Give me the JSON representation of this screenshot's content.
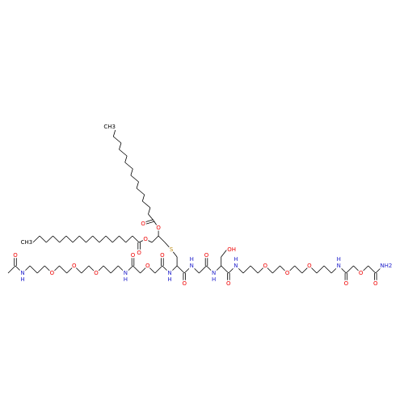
{
  "labels": [
    "O",
    "N",
    "H",
    "O",
    "O",
    "O",
    "N",
    "H",
    "O",
    "O",
    "O",
    "N",
    "H",
    "O",
    "N",
    "H",
    "O",
    "N",
    "H",
    "O",
    "N",
    "H",
    "O",
    "O",
    "O",
    "N",
    "H",
    "O",
    "O",
    "O",
    "NH2",
    "S",
    "O",
    "O",
    "CH3",
    "O",
    "O",
    "CH3",
    "OH"
  ]
}
